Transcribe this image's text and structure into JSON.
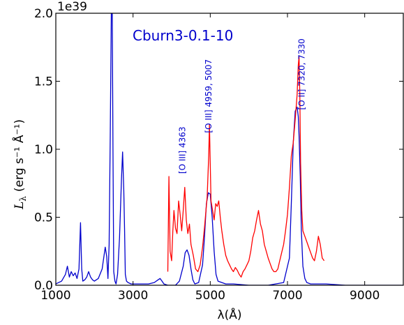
{
  "chart_data": {
    "type": "line",
    "title": "Cburn3-0.1-10",
    "xlabel": "λ(Å)",
    "ylabel_main": "L",
    "ylabel_sub": "λ",
    "ylabel_units": "(erg s⁻¹ Å⁻¹)",
    "offset_label": "1e39",
    "xlim": [
      1000,
      10000
    ],
    "ylim": [
      0,
      2.0
    ],
    "xticks": [
      1000,
      3000,
      5000,
      7000,
      9000
    ],
    "xticklabels": [
      "1000",
      "3000",
      "5000",
      "7000",
      "9000"
    ],
    "yticks": [
      0,
      0.5,
      1.0,
      1.5,
      2.0
    ],
    "yticklabels": [
      "0.0",
      "0.5",
      "1.0",
      "1.5",
      "2.0"
    ],
    "series": [
      {
        "color": "#0000cc",
        "x": [
          1000,
          1150,
          1250,
          1300,
          1350,
          1400,
          1450,
          1500,
          1550,
          1600,
          1640,
          1670,
          1700,
          1750,
          1800,
          1850,
          1900,
          1950,
          2000,
          2100,
          2200,
          2280,
          2320,
          2350,
          2380,
          2410,
          2440,
          2460,
          2480,
          2500,
          2530,
          2560,
          2600,
          2650,
          2700,
          2730,
          2760,
          2780,
          2800,
          2830,
          2870,
          2950,
          3050,
          3200,
          3400,
          3550,
          3650,
          3700,
          3750,
          3800,
          3900,
          4000,
          4100,
          4200,
          4300,
          4350,
          4400,
          4450,
          4500,
          4550,
          4600,
          4700,
          4800,
          4850,
          4900,
          4950,
          5000,
          5050,
          5100,
          5150,
          5200,
          5300,
          5400,
          5600,
          6000,
          6500,
          6900,
          7050,
          7100,
          7150,
          7200,
          7250,
          7280,
          7300,
          7330,
          7360,
          7400,
          7450,
          7500,
          7600,
          7800,
          8000,
          8500,
          9000,
          10000
        ],
        "y": [
          0.01,
          0.03,
          0.08,
          0.14,
          0.06,
          0.1,
          0.07,
          0.09,
          0.05,
          0.12,
          0.46,
          0.12,
          0.03,
          0.04,
          0.06,
          0.1,
          0.06,
          0.04,
          0.03,
          0.05,
          0.12,
          0.28,
          0.21,
          0.05,
          0.3,
          1.1,
          2.1,
          2.1,
          1.0,
          0.1,
          0.03,
          0.01,
          0.08,
          0.35,
          0.78,
          0.98,
          0.7,
          0.42,
          0.08,
          0.03,
          0.02,
          0.01,
          0.01,
          0.01,
          0.01,
          0.02,
          0.04,
          0.05,
          0.03,
          0.01,
          0.0,
          0.0,
          0.0,
          0.03,
          0.14,
          0.24,
          0.26,
          0.22,
          0.12,
          0.04,
          0.01,
          0.02,
          0.15,
          0.35,
          0.6,
          0.68,
          0.67,
          0.5,
          0.25,
          0.08,
          0.03,
          0.02,
          0.01,
          0.01,
          0.0,
          0.0,
          0.02,
          0.2,
          0.6,
          1.05,
          1.28,
          1.31,
          1.24,
          1.1,
          0.8,
          0.4,
          0.14,
          0.05,
          0.02,
          0.01,
          0.01,
          0.01,
          0.0,
          0.0,
          0.0
        ]
      },
      {
        "color": "#ff0000",
        "x": [
          3900,
          3930,
          3960,
          4000,
          4030,
          4060,
          4100,
          4140,
          4180,
          4220,
          4260,
          4300,
          4340,
          4380,
          4420,
          4460,
          4500,
          4560,
          4620,
          4680,
          4740,
          4800,
          4850,
          4890,
          4920,
          4960,
          4980,
          5000,
          5020,
          5060,
          5100,
          5140,
          5180,
          5220,
          5260,
          5300,
          5350,
          5400,
          5450,
          5500,
          5550,
          5600,
          5650,
          5700,
          5750,
          5800,
          5850,
          5900,
          5950,
          6000,
          6050,
          6100,
          6150,
          6200,
          6250,
          6300,
          6350,
          6400,
          6450,
          6500,
          6550,
          6600,
          6650,
          6700,
          6750,
          6800,
          6850,
          6900,
          6950,
          7000,
          7050,
          7100,
          7150,
          7200,
          7250,
          7280,
          7300,
          7320,
          7340,
          7370,
          7400,
          7450,
          7500,
          7550,
          7600,
          7650,
          7700,
          7750,
          7800,
          7850,
          7900,
          7950
        ],
        "y": [
          0.1,
          0.8,
          0.25,
          0.18,
          0.4,
          0.55,
          0.42,
          0.38,
          0.62,
          0.52,
          0.4,
          0.55,
          0.72,
          0.48,
          0.38,
          0.45,
          0.3,
          0.22,
          0.12,
          0.1,
          0.15,
          0.28,
          0.42,
          0.55,
          0.65,
          0.95,
          1.18,
          0.9,
          0.62,
          0.55,
          0.48,
          0.6,
          0.58,
          0.62,
          0.5,
          0.4,
          0.3,
          0.22,
          0.18,
          0.15,
          0.12,
          0.1,
          0.13,
          0.11,
          0.08,
          0.06,
          0.1,
          0.12,
          0.15,
          0.18,
          0.25,
          0.35,
          0.4,
          0.48,
          0.55,
          0.45,
          0.4,
          0.3,
          0.25,
          0.2,
          0.16,
          0.12,
          0.1,
          0.1,
          0.12,
          0.18,
          0.24,
          0.3,
          0.4,
          0.52,
          0.72,
          0.95,
          1.05,
          1.22,
          1.4,
          1.62,
          1.68,
          1.4,
          0.9,
          0.55,
          0.4,
          0.36,
          0.32,
          0.28,
          0.24,
          0.2,
          0.18,
          0.25,
          0.36,
          0.3,
          0.2,
          0.18
        ]
      }
    ],
    "annotations": [
      {
        "text": "[O III] 4363",
        "x": 4350,
        "y": 0.82
      },
      {
        "text": "[O III] 4959, 5007",
        "x": 5030,
        "y": 1.12
      },
      {
        "text": "[O II] 7320, 7330",
        "x": 7440,
        "y": 1.29
      }
    ],
    "colors": {
      "blue": "#0000cc",
      "red": "#ff0000",
      "axes": "#000000"
    }
  }
}
